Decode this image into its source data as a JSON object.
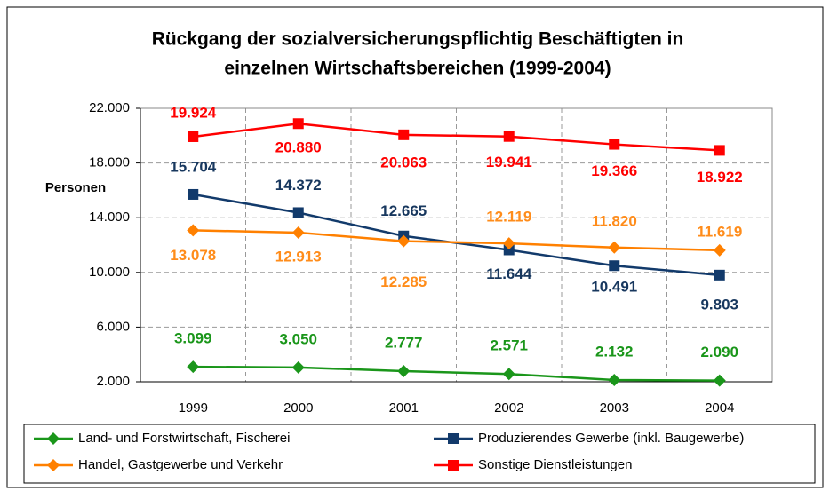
{
  "chart_data": {
    "type": "line",
    "title": [
      "Rückgang der sozialversicherungspflichtig Beschäftigten in",
      "einzelnen Wirtschaftsbereichen (1999-2004)"
    ],
    "y_label": "Personen",
    "categories": [
      "1999",
      "2000",
      "2001",
      "2002",
      "2003",
      "2004"
    ],
    "ylim": [
      2000,
      22000
    ],
    "yticks": [
      {
        "value": 2000,
        "label": "2.000"
      },
      {
        "value": 6000,
        "label": "6.000"
      },
      {
        "value": 10000,
        "label": "10.000"
      },
      {
        "value": 14000,
        "label": "14.000"
      },
      {
        "value": 18000,
        "label": "18.000"
      },
      {
        "value": 22000,
        "label": "22.000"
      }
    ],
    "grid": true,
    "legend": "bottom",
    "series": [
      {
        "name": "Land- und Forstwirtschaft, Fischerei",
        "color": "#1a961a",
        "marker": "diamond",
        "values": [
          3099,
          3050,
          2777,
          2571,
          2132,
          2090
        ],
        "value_labels": [
          "3.099",
          "3.050",
          "2.777",
          "2.571",
          "2.132",
          "2.090"
        ]
      },
      {
        "name": "Produzierendes Gewerbe (inkl. Baugewerbe)",
        "color": "#123a6b",
        "marker": "square",
        "values": [
          15704,
          14372,
          12665,
          11644,
          10491,
          9803
        ],
        "value_labels": [
          "15.704",
          "14.372",
          "12.665",
          "11.644",
          "10.491",
          "9.803"
        ]
      },
      {
        "name": "Handel, Gastgewerbe und Verkehr",
        "color": "#ff8000",
        "marker": "diamond",
        "values": [
          13078,
          12913,
          12285,
          12119,
          11820,
          11619
        ],
        "value_labels": [
          "13.078",
          "12.913",
          "12.285",
          "12.119",
          "11.820",
          "11.619"
        ]
      },
      {
        "name": "Sonstige Dienstleistungen",
        "color": "#ff0000",
        "marker": "square",
        "values": [
          19924,
          20880,
          20063,
          19941,
          19366,
          18922
        ],
        "value_labels": [
          "19.924",
          "20.880",
          "20.063",
          "19.941",
          "19.366",
          "18.922"
        ]
      }
    ]
  }
}
